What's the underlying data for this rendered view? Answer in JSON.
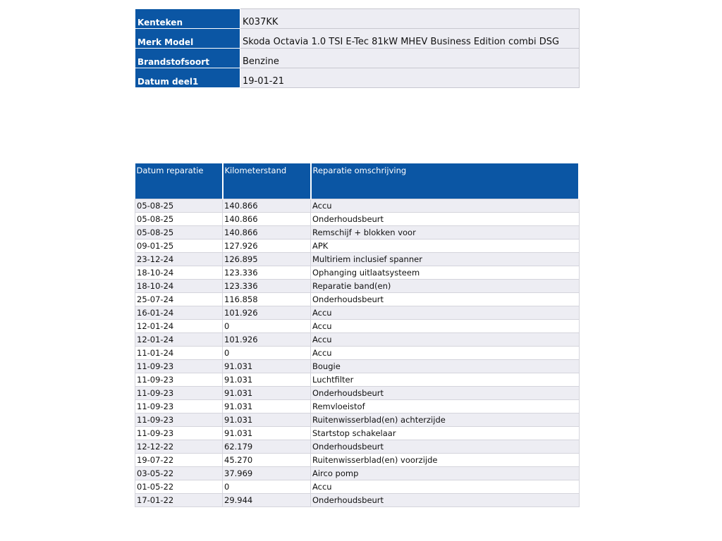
{
  "vehicle": {
    "rows": [
      {
        "label": "Kenteken",
        "value": "K037KK"
      },
      {
        "label": "Merk Model",
        "value": "Skoda Octavia 1.0 TSI E-Tec 81kW MHEV Business Edition combi  DSG"
      },
      {
        "label": "Brandstofsoort",
        "value": "Benzine"
      },
      {
        "label": "Datum deel1",
        "value": "19-01-21"
      }
    ]
  },
  "repairs": {
    "header": [
      "Datum reparatie",
      "Kilometerstand",
      "Reparatie omschrijving"
    ],
    "rows": [
      [
        "05-08-25",
        "140.866",
        "Accu"
      ],
      [
        "05-08-25",
        "140.866",
        "Onderhoudsbeurt"
      ],
      [
        "05-08-25",
        "140.866",
        "Remschijf + blokken voor"
      ],
      [
        "09-01-25",
        "127.926",
        "APK"
      ],
      [
        "23-12-24",
        "126.895",
        "Multiriem inclusief spanner"
      ],
      [
        "18-10-24",
        "123.336",
        "Ophanging uitlaatsysteem"
      ],
      [
        "18-10-24",
        "123.336",
        "Reparatie band(en)"
      ],
      [
        "25-07-24",
        "116.858",
        "Onderhoudsbeurt"
      ],
      [
        "16-01-24",
        "101.926",
        "Accu"
      ],
      [
        "12-01-24",
        "0",
        "Accu"
      ],
      [
        "12-01-24",
        "101.926",
        "Accu"
      ],
      [
        "11-01-24",
        "0",
        "Accu"
      ],
      [
        "11-09-23",
        "91.031",
        "Bougie"
      ],
      [
        "11-09-23",
        "91.031",
        "Luchtfilter"
      ],
      [
        "11-09-23",
        "91.031",
        "Onderhoudsbeurt"
      ],
      [
        "11-09-23",
        "91.031",
        "Remvloeistof"
      ],
      [
        "11-09-23",
        "91.031",
        "Ruitenwisserblad(en) achterzijde"
      ],
      [
        "11-09-23",
        "91.031",
        "Startstop schakelaar"
      ],
      [
        "12-12-22",
        "62.179",
        "Onderhoudsbeurt"
      ],
      [
        "19-07-22",
        "45.270",
        "Ruitenwisserblad(en) voorzijde"
      ],
      [
        "03-05-22",
        "37.969",
        "Airco pomp"
      ],
      [
        "01-05-22",
        "0",
        "Accu"
      ],
      [
        "17-01-22",
        "29.944",
        "Onderhoudsbeurt"
      ]
    ]
  }
}
